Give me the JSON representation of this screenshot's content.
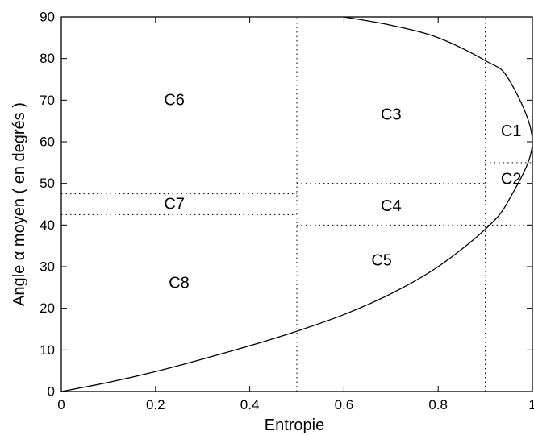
{
  "chart_data": {
    "type": "line",
    "xlabel": "Entropie",
    "ylabel": "Angle α moyen ( en degrés )",
    "xlim": [
      0,
      1
    ],
    "ylim": [
      0,
      90
    ],
    "xticks": [
      0,
      0.2,
      0.4,
      0.6,
      0.8,
      1
    ],
    "xtick_labels": [
      "0",
      "0.2",
      "0.4",
      "0.6",
      "0.8",
      "1"
    ],
    "yticks": [
      0,
      10,
      20,
      30,
      40,
      50,
      60,
      70,
      80,
      90
    ],
    "ytick_labels": [
      "0",
      "10",
      "20",
      "30",
      "40",
      "50",
      "60",
      "70",
      "80",
      "90"
    ],
    "grid": false,
    "boundary_curve": {
      "description": "Feasible boundary curve",
      "x": [
        0,
        0.1,
        0.2,
        0.3,
        0.4,
        0.5,
        0.6,
        0.7,
        0.8,
        0.9,
        0.95,
        1.0,
        0.95,
        0.9,
        0.8,
        0.7,
        0.6
      ],
      "y": [
        0,
        2.2,
        4.8,
        7.8,
        11.0,
        14.5,
        18.5,
        23.5,
        30.0,
        39.0,
        46.0,
        60.0,
        75.0,
        79.5,
        85.0,
        88.0,
        90.0
      ]
    },
    "zone_dividers": [
      {
        "orientation": "vertical",
        "x": 0.5,
        "y_range": [
          0,
          90
        ]
      },
      {
        "orientation": "vertical",
        "x": 0.9,
        "y_range": [
          0,
          90
        ]
      },
      {
        "orientation": "horizontal",
        "y": 47.5,
        "x_range": [
          0,
          0.5
        ]
      },
      {
        "orientation": "horizontal",
        "y": 42.5,
        "x_range": [
          0,
          0.5
        ]
      },
      {
        "orientation": "horizontal",
        "y": 50,
        "x_range": [
          0.5,
          0.9
        ]
      },
      {
        "orientation": "horizontal",
        "y": 40,
        "x_range": [
          0.5,
          1.0
        ]
      },
      {
        "orientation": "horizontal",
        "y": 55,
        "x_range": [
          0.9,
          1.0
        ]
      }
    ],
    "annotations": [
      {
        "text": "C1",
        "x": 0.955,
        "y": 62.5
      },
      {
        "text": "C2",
        "x": 0.955,
        "y": 51
      },
      {
        "text": "C3",
        "x": 0.7,
        "y": 66.5
      },
      {
        "text": "C4",
        "x": 0.7,
        "y": 44.5
      },
      {
        "text": "C5",
        "x": 0.68,
        "y": 31.5
      },
      {
        "text": "C6",
        "x": 0.24,
        "y": 70
      },
      {
        "text": "C7",
        "x": 0.24,
        "y": 45
      },
      {
        "text": "C8",
        "x": 0.25,
        "y": 26
      }
    ]
  }
}
